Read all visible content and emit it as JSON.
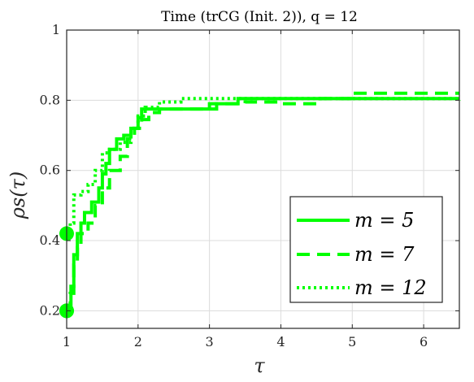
{
  "chart_data": {
    "type": "line",
    "title": "Time (trCG (Init. 2)), q = 12",
    "xlabel": "τ",
    "ylabel": "ρs(τ)",
    "xlim": [
      1,
      6.5
    ],
    "ylim": [
      0.15,
      1.0
    ],
    "xticks": [
      "1",
      "2",
      "3",
      "4",
      "5",
      "6"
    ],
    "yticks": [
      "0.2",
      "0.4",
      "0.6",
      "0.8",
      "1"
    ],
    "grid": true,
    "legend_position": "bottom-right",
    "colors": {
      "series": "#00ff00",
      "axis": "#262626",
      "grid": "#dcdcdc"
    },
    "series": [
      {
        "name": "m = 5",
        "style": "solid",
        "x": [
          1.0,
          1.06,
          1.1,
          1.15,
          1.2,
          1.25,
          1.3,
          1.35,
          1.45,
          1.5,
          1.55,
          1.6,
          1.7,
          1.8,
          1.9,
          2.0,
          2.05,
          2.3,
          3.0,
          3.1,
          3.4,
          4.5,
          6.5
        ],
        "y": [
          0.2,
          0.27,
          0.36,
          0.42,
          0.45,
          0.48,
          0.48,
          0.51,
          0.55,
          0.59,
          0.62,
          0.66,
          0.69,
          0.7,
          0.72,
          0.75,
          0.775,
          0.775,
          0.775,
          0.79,
          0.805,
          0.805,
          0.805
        ],
        "marker_start": true
      },
      {
        "name": "m = 7",
        "style": "dashed",
        "x": [
          1.0,
          1.05,
          1.1,
          1.15,
          1.2,
          1.3,
          1.4,
          1.5,
          1.6,
          1.75,
          1.85,
          1.95,
          2.05,
          2.15,
          2.3,
          2.6,
          3.0,
          3.5,
          4.0,
          4.55,
          5.0,
          6.2,
          6.5
        ],
        "y": [
          0.2,
          0.25,
          0.33,
          0.38,
          0.42,
          0.45,
          0.5,
          0.55,
          0.6,
          0.64,
          0.69,
          0.72,
          0.745,
          0.765,
          0.775,
          0.775,
          0.79,
          0.795,
          0.79,
          0.805,
          0.82,
          0.82,
          0.82
        ],
        "marker_start": true
      },
      {
        "name": "m = 12",
        "style": "dotted",
        "x": [
          1.0,
          1.05,
          1.1,
          1.2,
          1.3,
          1.4,
          1.5,
          1.6,
          1.75,
          1.9,
          2.0,
          2.1,
          2.3,
          2.6,
          3.0,
          4.0,
          5.0,
          6.2,
          6.5
        ],
        "y": [
          0.42,
          0.45,
          0.53,
          0.54,
          0.56,
          0.6,
          0.65,
          0.66,
          0.68,
          0.72,
          0.755,
          0.78,
          0.795,
          0.805,
          0.805,
          0.805,
          0.805,
          0.805,
          0.8
        ],
        "marker_start": true
      }
    ]
  }
}
